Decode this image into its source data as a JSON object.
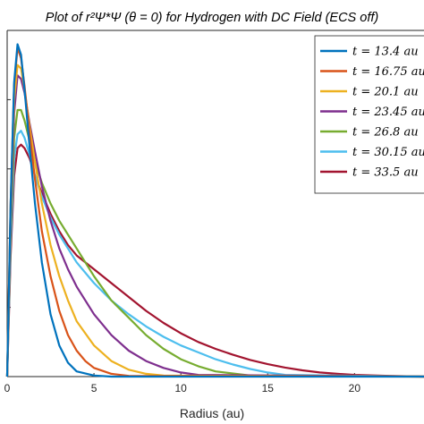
{
  "chart_data": {
    "type": "line",
    "title": "Plot of r²Ψ*Ψ (θ = 0) for Hydrogen with DC Field (ECS off)",
    "xlabel": "Radius (au)",
    "ylabel": "",
    "xlim": [
      0,
      24
    ],
    "ylim": [
      0,
      1
    ],
    "xticks": [
      0,
      5,
      10,
      15,
      20
    ],
    "grid": false,
    "legend_position": "top-right",
    "series": [
      {
        "name": "t = 13.4 au",
        "color": "#0072BD",
        "x": [
          0,
          0.2,
          0.4,
          0.6,
          0.8,
          1.0,
          1.3,
          1.6,
          2.0,
          2.5,
          3.0,
          3.5,
          4.0,
          5.0,
          6.0,
          24
        ],
        "y": [
          0,
          0.5,
          0.85,
          0.96,
          0.93,
          0.83,
          0.66,
          0.5,
          0.33,
          0.18,
          0.09,
          0.04,
          0.015,
          0.003,
          0,
          0
        ]
      },
      {
        "name": "t = 16.75 au",
        "color": "#D95319",
        "x": [
          0,
          0.2,
          0.4,
          0.6,
          0.8,
          1.0,
          1.3,
          1.6,
          2.0,
          2.5,
          3.0,
          3.5,
          4.0,
          4.5,
          5.0,
          6.0,
          7.0,
          24
        ],
        "y": [
          0,
          0.5,
          0.84,
          0.95,
          0.92,
          0.84,
          0.7,
          0.57,
          0.42,
          0.29,
          0.19,
          0.12,
          0.075,
          0.045,
          0.025,
          0.008,
          0.002,
          0
        ]
      },
      {
        "name": "t = 20.1 au",
        "color": "#EDB120",
        "x": [
          0,
          0.2,
          0.4,
          0.6,
          0.8,
          1.0,
          1.3,
          1.6,
          2.0,
          2.5,
          3.0,
          3.5,
          4.0,
          5.0,
          6.0,
          7.0,
          8.0,
          9.0,
          24
        ],
        "y": [
          0,
          0.48,
          0.8,
          0.9,
          0.89,
          0.83,
          0.72,
          0.62,
          0.5,
          0.38,
          0.29,
          0.22,
          0.16,
          0.09,
          0.045,
          0.02,
          0.008,
          0.003,
          0
        ]
      },
      {
        "name": "t = 23.45 au",
        "color": "#7E2F8E",
        "x": [
          0,
          0.2,
          0.4,
          0.6,
          0.8,
          1.0,
          1.3,
          1.6,
          2.0,
          2.5,
          3.0,
          3.5,
          4.0,
          5.0,
          6.0,
          7.0,
          8.0,
          9.0,
          10.0,
          11.0,
          24
        ],
        "y": [
          0,
          0.45,
          0.76,
          0.87,
          0.86,
          0.82,
          0.73,
          0.65,
          0.55,
          0.45,
          0.37,
          0.31,
          0.26,
          0.18,
          0.12,
          0.075,
          0.045,
          0.025,
          0.012,
          0.005,
          0
        ]
      },
      {
        "name": "t = 26.8 au",
        "color": "#77AC30",
        "x": [
          0,
          0.2,
          0.4,
          0.6,
          0.8,
          1.0,
          1.3,
          1.6,
          2.0,
          2.5,
          3.0,
          3.5,
          4.0,
          4.5,
          5.0,
          6.0,
          7.0,
          8.0,
          9.0,
          10.0,
          11.0,
          12.0,
          14.0,
          24
        ],
        "y": [
          0,
          0.42,
          0.69,
          0.77,
          0.77,
          0.74,
          0.68,
          0.62,
          0.56,
          0.5,
          0.45,
          0.41,
          0.37,
          0.33,
          0.29,
          0.22,
          0.17,
          0.12,
          0.08,
          0.05,
          0.03,
          0.015,
          0.003,
          0
        ]
      },
      {
        "name": "t = 30.15 au",
        "color": "#4DBEEE",
        "x": [
          0,
          0.2,
          0.4,
          0.6,
          0.8,
          1.0,
          1.3,
          1.6,
          2.0,
          2.5,
          3.0,
          3.5,
          4.0,
          5.0,
          6.0,
          7.0,
          8.0,
          9.0,
          10.0,
          11.0,
          12.0,
          13.0,
          14.0,
          15.0,
          16.0,
          24
        ],
        "y": [
          0,
          0.38,
          0.63,
          0.7,
          0.71,
          0.69,
          0.64,
          0.58,
          0.52,
          0.46,
          0.41,
          0.37,
          0.33,
          0.27,
          0.22,
          0.18,
          0.145,
          0.115,
          0.09,
          0.07,
          0.05,
          0.035,
          0.022,
          0.012,
          0.005,
          0
        ]
      },
      {
        "name": "t = 33.5 au",
        "color": "#A2142F",
        "x": [
          0,
          0.2,
          0.4,
          0.6,
          0.8,
          1.0,
          1.3,
          1.6,
          2.0,
          2.5,
          3.0,
          3.5,
          4.0,
          5.0,
          6.0,
          7.0,
          8.0,
          9.0,
          10.0,
          11.0,
          12.0,
          13.0,
          14.0,
          15.0,
          16.0,
          17.0,
          18.0,
          19.0,
          20.0,
          22.0,
          24
        ],
        "y": [
          0,
          0.35,
          0.58,
          0.66,
          0.67,
          0.66,
          0.63,
          0.58,
          0.53,
          0.47,
          0.42,
          0.38,
          0.35,
          0.31,
          0.27,
          0.23,
          0.19,
          0.155,
          0.125,
          0.1,
          0.08,
          0.063,
          0.048,
          0.036,
          0.026,
          0.018,
          0.012,
          0.008,
          0.005,
          0.002,
          0
        ]
      }
    ]
  }
}
